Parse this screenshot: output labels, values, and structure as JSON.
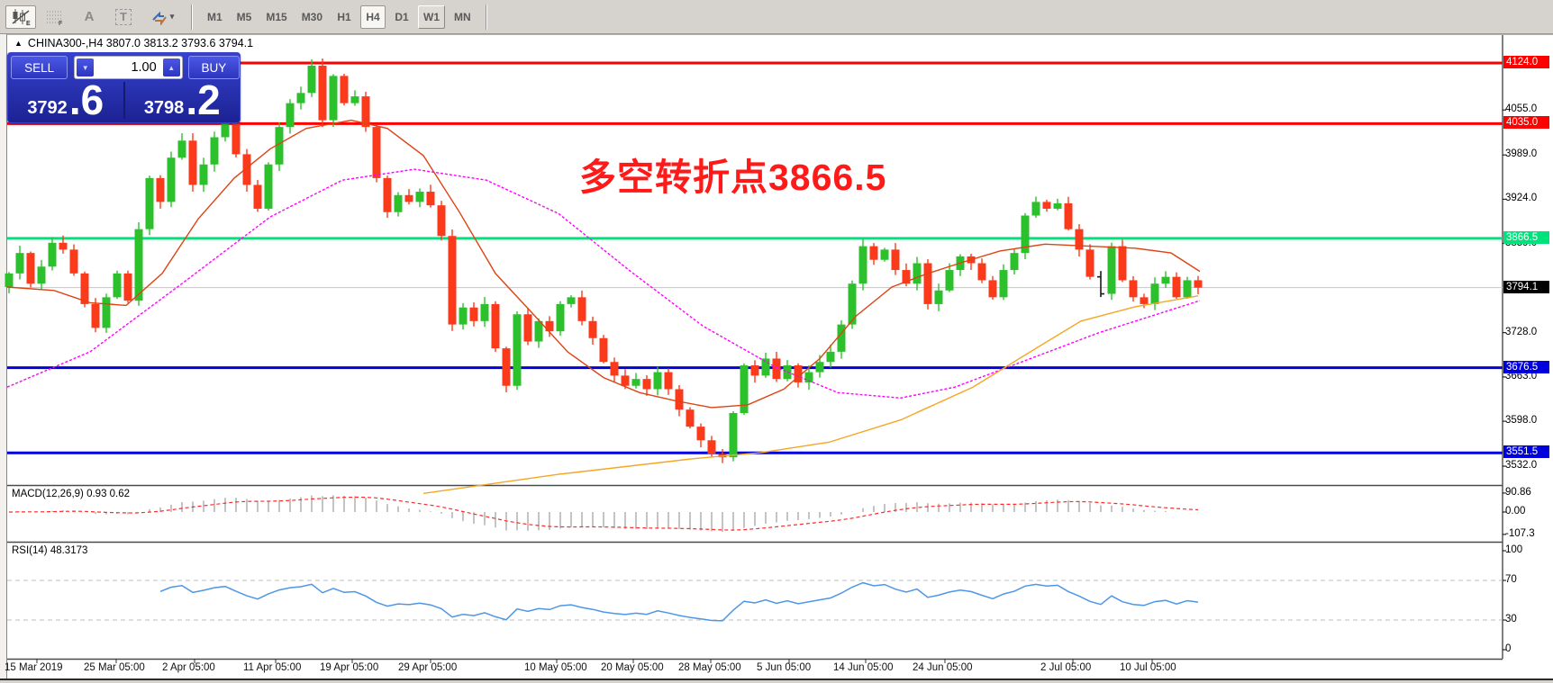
{
  "toolbar": {
    "tools": [
      {
        "name": "candlestick-tool",
        "sub": "E"
      },
      {
        "name": "grid-tool",
        "sub": "F"
      },
      {
        "name": "text-label-tool",
        "glyph": "A"
      },
      {
        "name": "text-box-tool",
        "glyph": "T"
      },
      {
        "name": "cycle-arrows-tool",
        "caret": "▾"
      }
    ],
    "timeframes": [
      {
        "label": "M1",
        "state": "flat"
      },
      {
        "label": "M5",
        "state": "flat"
      },
      {
        "label": "M15",
        "state": "flat"
      },
      {
        "label": "M30",
        "state": "flat"
      },
      {
        "label": "H1",
        "state": "flat"
      },
      {
        "label": "H4",
        "state": "active"
      },
      {
        "label": "D1",
        "state": "flat"
      },
      {
        "label": "W1",
        "state": "raised"
      },
      {
        "label": "MN",
        "state": "flat"
      }
    ]
  },
  "chart_header": {
    "collapse_icon": "▲",
    "symbol_line": "CHINA300-,H4  3807.0 3813.2 3793.6 3794.1"
  },
  "trade_panel": {
    "sell_label": "SELL",
    "buy_label": "BUY",
    "volume": "1.00",
    "spin_down": "▼",
    "spin_up": "▲",
    "sell_price_small": "3792",
    "sell_price_big": ".6",
    "buy_price_small": "3798",
    "buy_price_big": ".2"
  },
  "chart_data": {
    "type": "candlestick",
    "title": "CHINA300-,H4",
    "ohlc_current": {
      "open": 3807.0,
      "high": 3813.2,
      "low": 3793.6,
      "close": 3794.1
    },
    "y_axis_ticks": [
      4055.0,
      3989.0,
      3924.0,
      3859.0,
      3728.0,
      3663.0,
      3598.0,
      3532.0
    ],
    "y_range": [
      3515,
      4140
    ],
    "grid": false,
    "candles": {
      "x_start": 10,
      "x_step": 12,
      "up_color": "#2cc12c",
      "down_color": "#fb3a1c",
      "black_bar_index": 101,
      "closes": [
        3815,
        3845,
        3800,
        3825,
        3860,
        3850,
        3815,
        3770,
        3735,
        3780,
        3815,
        3775,
        3880,
        3955,
        3920,
        3985,
        4010,
        3945,
        3975,
        4015,
        4035,
        3990,
        3945,
        3910,
        3975,
        4030,
        4065,
        4080,
        4120,
        4040,
        4105,
        4065,
        4075,
        4030,
        3955,
        3905,
        3930,
        3920,
        3935,
        3915,
        3870,
        3740,
        3765,
        3745,
        3770,
        3705,
        3650,
        3755,
        3715,
        3745,
        3730,
        3770,
        3780,
        3745,
        3720,
        3685,
        3665,
        3650,
        3660,
        3645,
        3670,
        3645,
        3615,
        3590,
        3570,
        3550,
        3545,
        3610,
        3680,
        3665,
        3690,
        3660,
        3680,
        3655,
        3670,
        3685,
        3700,
        3740,
        3800,
        3855,
        3835,
        3850,
        3820,
        3800,
        3830,
        3770,
        3790,
        3820,
        3840,
        3830,
        3805,
        3780,
        3820,
        3845,
        3900,
        3920,
        3910,
        3918,
        3880,
        3850,
        3810,
        3785,
        3855,
        3805,
        3780,
        3770,
        3800,
        3810,
        3780,
        3805,
        3794.1
      ]
    },
    "levels": [
      {
        "price": 4124.0,
        "label": "4124.0",
        "color": "#fe0000",
        "width": 3
      },
      {
        "price": 4035.0,
        "label": "4035.0",
        "color": "#fe0000",
        "width": 3
      },
      {
        "price": 3866.5,
        "label": "3866.5",
        "color": "#00e27c",
        "width": 3
      },
      {
        "price": 3676.5,
        "label": "3676.5",
        "color": "#0000dd",
        "width": 3
      },
      {
        "price": 3551.5,
        "label": "3551.5",
        "color": "#0000dd",
        "width": 3
      }
    ],
    "current_price": {
      "price": 3794.1,
      "label": "3794.1",
      "line_color": "#c4c4c4",
      "label_bg": "#000000"
    },
    "moving_averages": [
      {
        "name": "ma-fast-red",
        "color": "#dd4414",
        "dash": "",
        "points": [
          [
            8,
            3795
          ],
          [
            60,
            3790
          ],
          [
            100,
            3772
          ],
          [
            140,
            3768
          ],
          [
            180,
            3815
          ],
          [
            220,
            3895
          ],
          [
            260,
            3955
          ],
          [
            300,
            3998
          ],
          [
            340,
            4028
          ],
          [
            390,
            4040
          ],
          [
            430,
            4028
          ],
          [
            470,
            3988
          ],
          [
            510,
            3905
          ],
          [
            550,
            3815
          ],
          [
            590,
            3758
          ],
          [
            630,
            3700
          ],
          [
            670,
            3662
          ],
          [
            710,
            3640
          ],
          [
            750,
            3628
          ],
          [
            790,
            3618
          ],
          [
            830,
            3622
          ],
          [
            870,
            3645
          ],
          [
            910,
            3690
          ],
          [
            950,
            3752
          ],
          [
            990,
            3795
          ],
          [
            1030,
            3815
          ],
          [
            1070,
            3832
          ],
          [
            1110,
            3848
          ],
          [
            1160,
            3858
          ],
          [
            1210,
            3855
          ],
          [
            1260,
            3852
          ],
          [
            1300,
            3845
          ],
          [
            1332,
            3818
          ]
        ]
      },
      {
        "name": "ma-slow-magenta",
        "color": "#ff00ff",
        "dash": "3 2",
        "points": [
          [
            8,
            3648
          ],
          [
            100,
            3700
          ],
          [
            200,
            3798
          ],
          [
            300,
            3898
          ],
          [
            380,
            3952
          ],
          [
            460,
            3968
          ],
          [
            540,
            3952
          ],
          [
            620,
            3903
          ],
          [
            700,
            3818
          ],
          [
            780,
            3738
          ],
          [
            860,
            3678
          ],
          [
            930,
            3640
          ],
          [
            1000,
            3632
          ],
          [
            1060,
            3648
          ],
          [
            1140,
            3688
          ],
          [
            1220,
            3728
          ],
          [
            1332,
            3775
          ]
        ]
      },
      {
        "name": "ma-long-orange",
        "color": "#f5a623",
        "dash": "",
        "points": [
          [
            470,
            3492
          ],
          [
            620,
            3520
          ],
          [
            770,
            3543
          ],
          [
            845,
            3552
          ],
          [
            920,
            3567
          ],
          [
            1000,
            3600
          ],
          [
            1080,
            3648
          ],
          [
            1150,
            3705
          ],
          [
            1200,
            3745
          ],
          [
            1260,
            3766
          ],
          [
            1330,
            3782
          ]
        ]
      }
    ],
    "annotation": {
      "text": "多空转折点3866.5",
      "color": "#ff1a1a",
      "x": 643,
      "y": 163,
      "size": 41
    },
    "x_axis": [
      {
        "label": "15 Mar 2019",
        "x": 5
      },
      {
        "label": "25 Mar 05:00",
        "x": 93
      },
      {
        "label": "2 Apr 05:00",
        "x": 180
      },
      {
        "label": "11 Apr 05:00",
        "x": 270
      },
      {
        "label": "19 Apr 05:00",
        "x": 355
      },
      {
        "label": "29 Apr 05:00",
        "x": 442
      },
      {
        "label": "10 May 05:00",
        "x": 582
      },
      {
        "label": "20 May 05:00",
        "x": 667
      },
      {
        "label": "28 May 05:00",
        "x": 753
      },
      {
        "label": "5 Jun 05:00",
        "x": 840
      },
      {
        "label": "14 Jun 05:00",
        "x": 925
      },
      {
        "label": "24 Jun 05:00",
        "x": 1013
      },
      {
        "label": "2 Jul 05:00",
        "x": 1155
      },
      {
        "label": "10 Jul 05:00",
        "x": 1243
      }
    ],
    "macd": {
      "label": "MACD(12,26,9) 0.93 0.62",
      "params": [
        12,
        26,
        9
      ],
      "values_now": [
        0.93,
        0.62
      ],
      "axis": [
        {
          "v": 90.86,
          "label": "90.86"
        },
        {
          "v": 0,
          "label": "0.00"
        },
        {
          "v": -107.3,
          "label": "-107.3"
        }
      ],
      "hist_color": "#c4c4c4",
      "signal_color": "#ff2a2a"
    },
    "rsi": {
      "label": "RSI(14) 48.3173",
      "period": 14,
      "value_now": 48.3173,
      "axis": [
        {
          "v": 100,
          "label": "100"
        },
        {
          "v": 70,
          "label": "70"
        },
        {
          "v": 30,
          "label": "30"
        },
        {
          "v": 0,
          "label": "0"
        }
      ],
      "guide_levels": [
        70,
        30
      ],
      "line_color": "#4d96e8"
    }
  }
}
